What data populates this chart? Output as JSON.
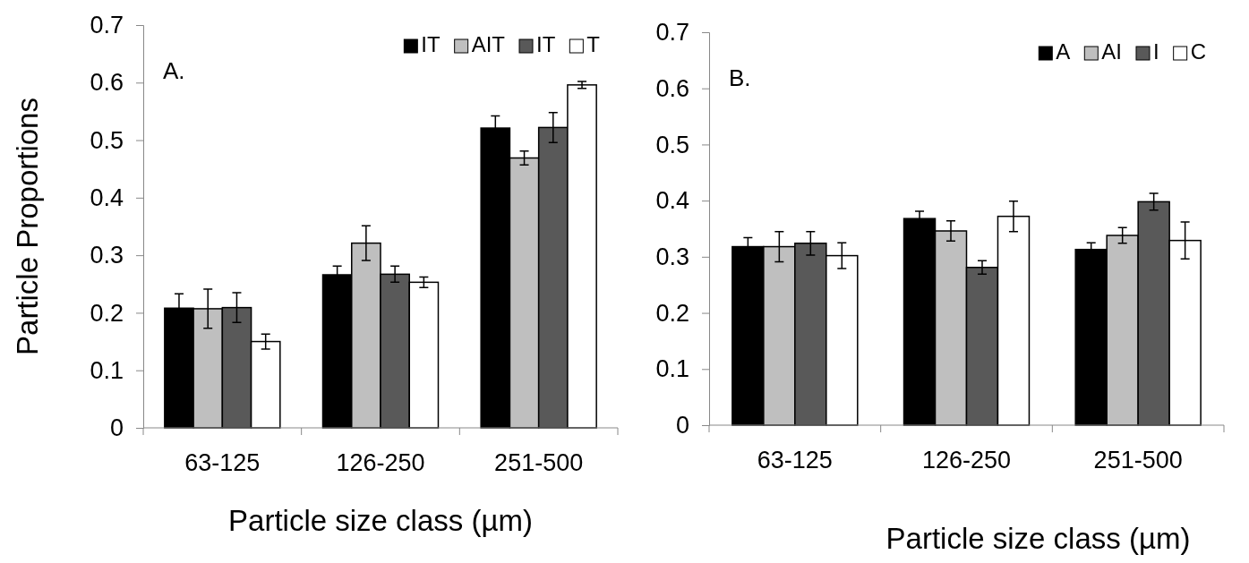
{
  "chart_data": [
    {
      "type": "bar",
      "ylabel": "Particle Proportions",
      "xlabel": "Particle size class (µm)",
      "annotations": [
        "A."
      ],
      "categories": [
        "63-125",
        "126-250",
        "251-500"
      ],
      "ylim": [
        0,
        0.7
      ],
      "yticks": [
        0,
        0.1,
        0.2,
        0.3,
        0.4,
        0.5,
        0.6,
        0.7
      ],
      "grid": false,
      "legend": "top right",
      "series": [
        {
          "name": "IT",
          "color": "#000000",
          "values": [
            0.208,
            0.266,
            0.521
          ],
          "errors": [
            0.025,
            0.015,
            0.021
          ]
        },
        {
          "name": "AIT",
          "color": "#bfbfbf",
          "values": [
            0.207,
            0.321,
            0.469
          ],
          "errors": [
            0.034,
            0.03,
            0.012
          ]
        },
        {
          "name": "IT",
          "color": "#595959",
          "values": [
            0.209,
            0.267,
            0.522
          ],
          "errors": [
            0.026,
            0.014,
            0.026
          ]
        },
        {
          "name": "T",
          "color": "#ffffff",
          "values": [
            0.15,
            0.253,
            0.596
          ],
          "errors": [
            0.013,
            0.009,
            0.006
          ]
        }
      ]
    },
    {
      "type": "bar",
      "xlabel": "Particle size class (µm)",
      "annotations": [
        "B."
      ],
      "categories": [
        "63-125",
        "126-250",
        "251-500"
      ],
      "ylim": [
        0,
        0.7
      ],
      "yticks": [
        0,
        0.1,
        0.2,
        0.3,
        0.4,
        0.5,
        0.6,
        0.7
      ],
      "grid": false,
      "legend": "top right",
      "series": [
        {
          "name": "A",
          "color": "#000000",
          "values": [
            0.318,
            0.368,
            0.313
          ],
          "errors": [
            0.016,
            0.013,
            0.012
          ]
        },
        {
          "name": "AI",
          "color": "#bfbfbf",
          "values": [
            0.318,
            0.346,
            0.338
          ],
          "errors": [
            0.027,
            0.018,
            0.014
          ]
        },
        {
          "name": "I",
          "color": "#595959",
          "values": [
            0.324,
            0.281,
            0.398
          ],
          "errors": [
            0.021,
            0.012,
            0.015
          ]
        },
        {
          "name": "C",
          "color": "#ffffff",
          "values": [
            0.302,
            0.372,
            0.329
          ],
          "errors": [
            0.023,
            0.027,
            0.033
          ]
        }
      ]
    }
  ]
}
